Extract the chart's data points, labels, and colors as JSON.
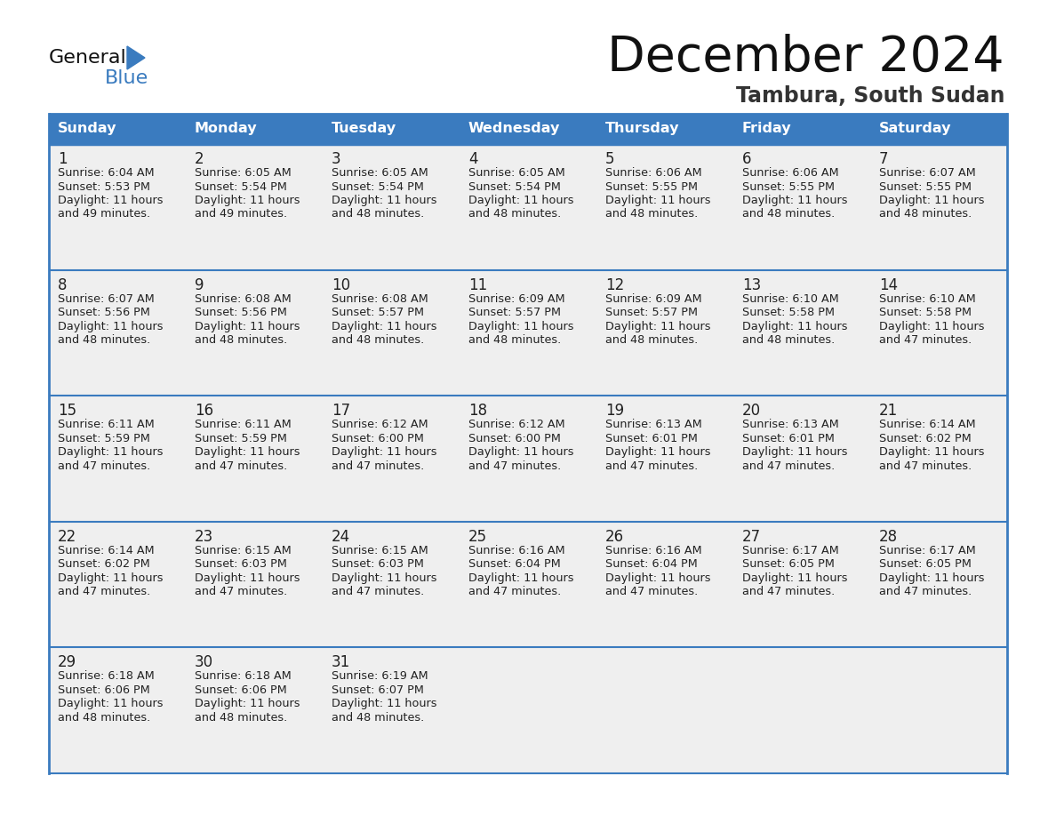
{
  "title": "December 2024",
  "subtitle": "Tambura, South Sudan",
  "header_color": "#3a7bbf",
  "header_text_color": "#ffffff",
  "day_names": [
    "Sunday",
    "Monday",
    "Tuesday",
    "Wednesday",
    "Thursday",
    "Friday",
    "Saturday"
  ],
  "cell_bg_color": "#efefef",
  "border_color": "#3a7bbf",
  "text_color": "#222222",
  "days": [
    {
      "day": 1,
      "col": 0,
      "row": 0,
      "sunrise": "6:04 AM",
      "sunset": "5:53 PM",
      "daylight_h": "11 hours",
      "daylight_m": "49 minutes."
    },
    {
      "day": 2,
      "col": 1,
      "row": 0,
      "sunrise": "6:05 AM",
      "sunset": "5:54 PM",
      "daylight_h": "11 hours",
      "daylight_m": "49 minutes."
    },
    {
      "day": 3,
      "col": 2,
      "row": 0,
      "sunrise": "6:05 AM",
      "sunset": "5:54 PM",
      "daylight_h": "11 hours",
      "daylight_m": "48 minutes."
    },
    {
      "day": 4,
      "col": 3,
      "row": 0,
      "sunrise": "6:05 AM",
      "sunset": "5:54 PM",
      "daylight_h": "11 hours",
      "daylight_m": "48 minutes."
    },
    {
      "day": 5,
      "col": 4,
      "row": 0,
      "sunrise": "6:06 AM",
      "sunset": "5:55 PM",
      "daylight_h": "11 hours",
      "daylight_m": "48 minutes."
    },
    {
      "day": 6,
      "col": 5,
      "row": 0,
      "sunrise": "6:06 AM",
      "sunset": "5:55 PM",
      "daylight_h": "11 hours",
      "daylight_m": "48 minutes."
    },
    {
      "day": 7,
      "col": 6,
      "row": 0,
      "sunrise": "6:07 AM",
      "sunset": "5:55 PM",
      "daylight_h": "11 hours",
      "daylight_m": "48 minutes."
    },
    {
      "day": 8,
      "col": 0,
      "row": 1,
      "sunrise": "6:07 AM",
      "sunset": "5:56 PM",
      "daylight_h": "11 hours",
      "daylight_m": "48 minutes."
    },
    {
      "day": 9,
      "col": 1,
      "row": 1,
      "sunrise": "6:08 AM",
      "sunset": "5:56 PM",
      "daylight_h": "11 hours",
      "daylight_m": "48 minutes."
    },
    {
      "day": 10,
      "col": 2,
      "row": 1,
      "sunrise": "6:08 AM",
      "sunset": "5:57 PM",
      "daylight_h": "11 hours",
      "daylight_m": "48 minutes."
    },
    {
      "day": 11,
      "col": 3,
      "row": 1,
      "sunrise": "6:09 AM",
      "sunset": "5:57 PM",
      "daylight_h": "11 hours",
      "daylight_m": "48 minutes."
    },
    {
      "day": 12,
      "col": 4,
      "row": 1,
      "sunrise": "6:09 AM",
      "sunset": "5:57 PM",
      "daylight_h": "11 hours",
      "daylight_m": "48 minutes."
    },
    {
      "day": 13,
      "col": 5,
      "row": 1,
      "sunrise": "6:10 AM",
      "sunset": "5:58 PM",
      "daylight_h": "11 hours",
      "daylight_m": "48 minutes."
    },
    {
      "day": 14,
      "col": 6,
      "row": 1,
      "sunrise": "6:10 AM",
      "sunset": "5:58 PM",
      "daylight_h": "11 hours",
      "daylight_m": "47 minutes."
    },
    {
      "day": 15,
      "col": 0,
      "row": 2,
      "sunrise": "6:11 AM",
      "sunset": "5:59 PM",
      "daylight_h": "11 hours",
      "daylight_m": "47 minutes."
    },
    {
      "day": 16,
      "col": 1,
      "row": 2,
      "sunrise": "6:11 AM",
      "sunset": "5:59 PM",
      "daylight_h": "11 hours",
      "daylight_m": "47 minutes."
    },
    {
      "day": 17,
      "col": 2,
      "row": 2,
      "sunrise": "6:12 AM",
      "sunset": "6:00 PM",
      "daylight_h": "11 hours",
      "daylight_m": "47 minutes."
    },
    {
      "day": 18,
      "col": 3,
      "row": 2,
      "sunrise": "6:12 AM",
      "sunset": "6:00 PM",
      "daylight_h": "11 hours",
      "daylight_m": "47 minutes."
    },
    {
      "day": 19,
      "col": 4,
      "row": 2,
      "sunrise": "6:13 AM",
      "sunset": "6:01 PM",
      "daylight_h": "11 hours",
      "daylight_m": "47 minutes."
    },
    {
      "day": 20,
      "col": 5,
      "row": 2,
      "sunrise": "6:13 AM",
      "sunset": "6:01 PM",
      "daylight_h": "11 hours",
      "daylight_m": "47 minutes."
    },
    {
      "day": 21,
      "col": 6,
      "row": 2,
      "sunrise": "6:14 AM",
      "sunset": "6:02 PM",
      "daylight_h": "11 hours",
      "daylight_m": "47 minutes."
    },
    {
      "day": 22,
      "col": 0,
      "row": 3,
      "sunrise": "6:14 AM",
      "sunset": "6:02 PM",
      "daylight_h": "11 hours",
      "daylight_m": "47 minutes."
    },
    {
      "day": 23,
      "col": 1,
      "row": 3,
      "sunrise": "6:15 AM",
      "sunset": "6:03 PM",
      "daylight_h": "11 hours",
      "daylight_m": "47 minutes."
    },
    {
      "day": 24,
      "col": 2,
      "row": 3,
      "sunrise": "6:15 AM",
      "sunset": "6:03 PM",
      "daylight_h": "11 hours",
      "daylight_m": "47 minutes."
    },
    {
      "day": 25,
      "col": 3,
      "row": 3,
      "sunrise": "6:16 AM",
      "sunset": "6:04 PM",
      "daylight_h": "11 hours",
      "daylight_m": "47 minutes."
    },
    {
      "day": 26,
      "col": 4,
      "row": 3,
      "sunrise": "6:16 AM",
      "sunset": "6:04 PM",
      "daylight_h": "11 hours",
      "daylight_m": "47 minutes."
    },
    {
      "day": 27,
      "col": 5,
      "row": 3,
      "sunrise": "6:17 AM",
      "sunset": "6:05 PM",
      "daylight_h": "11 hours",
      "daylight_m": "47 minutes."
    },
    {
      "day": 28,
      "col": 6,
      "row": 3,
      "sunrise": "6:17 AM",
      "sunset": "6:05 PM",
      "daylight_h": "11 hours",
      "daylight_m": "47 minutes."
    },
    {
      "day": 29,
      "col": 0,
      "row": 4,
      "sunrise": "6:18 AM",
      "sunset": "6:06 PM",
      "daylight_h": "11 hours",
      "daylight_m": "48 minutes."
    },
    {
      "day": 30,
      "col": 1,
      "row": 4,
      "sunrise": "6:18 AM",
      "sunset": "6:06 PM",
      "daylight_h": "11 hours",
      "daylight_m": "48 minutes."
    },
    {
      "day": 31,
      "col": 2,
      "row": 4,
      "sunrise": "6:19 AM",
      "sunset": "6:07 PM",
      "daylight_h": "11 hours",
      "daylight_m": "48 minutes."
    }
  ],
  "num_rows": 5,
  "num_cols": 7
}
